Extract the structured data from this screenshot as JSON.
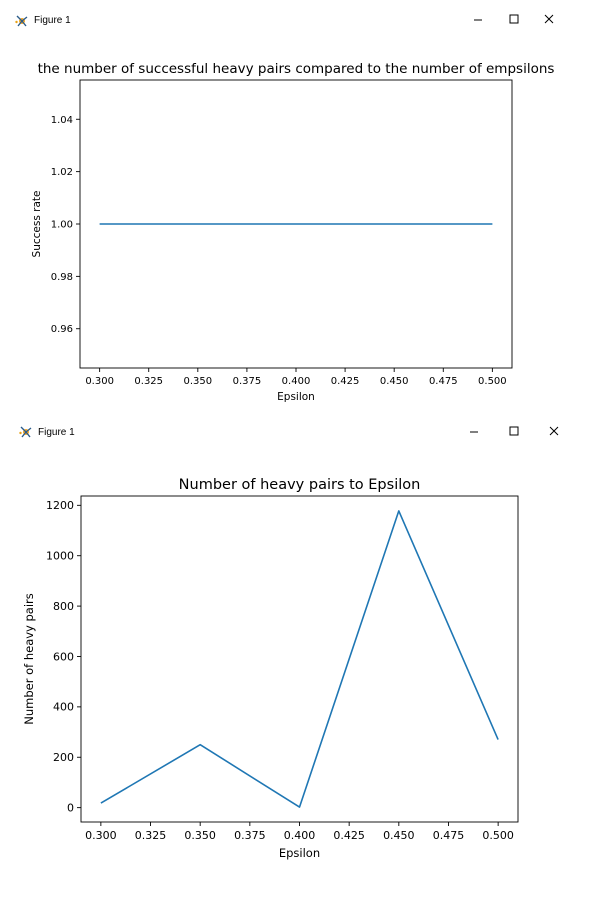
{
  "windows": [
    {
      "title": "Figure 1",
      "controls": {
        "minimize_icon": "minimize-icon",
        "maximize_icon": "maximize-icon",
        "close_icon": "close-icon"
      }
    },
    {
      "title": "Figure 1",
      "controls": {
        "minimize_icon": "minimize-icon",
        "maximize_icon": "maximize-icon",
        "close_icon": "close-icon"
      }
    }
  ],
  "chart_data": [
    {
      "type": "line",
      "title": "the number of successful heavy pairs compared to the number of empsilons",
      "xlabel": "Epsilon",
      "ylabel": "Success rate",
      "x": [
        0.3,
        0.35,
        0.4,
        0.45,
        0.5
      ],
      "series": [
        {
          "values": [
            1.0,
            1.0,
            1.0,
            1.0,
            1.0
          ],
          "color": "#1f77b4"
        }
      ],
      "xlim": [
        0.29,
        0.51
      ],
      "ylim": [
        0.945,
        1.055
      ],
      "xticks": [
        0.3,
        0.325,
        0.35,
        0.375,
        0.4,
        0.425,
        0.45,
        0.475,
        0.5
      ],
      "xtick_labels": [
        "0.300",
        "0.325",
        "0.350",
        "0.375",
        "0.400",
        "0.425",
        "0.450",
        "0.475",
        "0.500"
      ],
      "yticks": [
        0.96,
        0.98,
        1.0,
        1.02,
        1.04
      ],
      "ytick_labels": [
        "0.96",
        "0.98",
        "1.00",
        "1.02",
        "1.04"
      ],
      "grid": false
    },
    {
      "type": "line",
      "title": "Number of heavy pairs to Epsilon",
      "xlabel": "Epsilon",
      "ylabel": "Number of heavy pairs",
      "x": [
        0.3,
        0.35,
        0.4,
        0.45,
        0.5
      ],
      "series": [
        {
          "values": [
            18,
            250,
            2,
            1178,
            270
          ],
          "color": "#1f77b4"
        }
      ],
      "xlim": [
        0.29,
        0.51
      ],
      "ylim": [
        -57,
        1237
      ],
      "xticks": [
        0.3,
        0.325,
        0.35,
        0.375,
        0.4,
        0.425,
        0.45,
        0.475,
        0.5
      ],
      "xtick_labels": [
        "0.300",
        "0.325",
        "0.350",
        "0.375",
        "0.400",
        "0.425",
        "0.450",
        "0.475",
        "0.500"
      ],
      "yticks": [
        0,
        200,
        400,
        600,
        800,
        1000,
        1200
      ],
      "ytick_labels": [
        "0",
        "200",
        "400",
        "600",
        "800",
        "1000",
        "1200"
      ],
      "grid": false
    }
  ]
}
